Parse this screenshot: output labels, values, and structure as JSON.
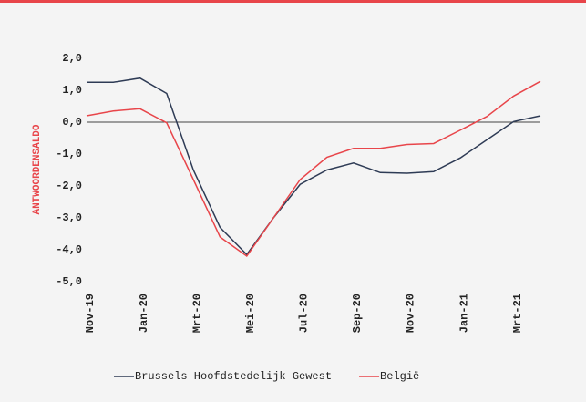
{
  "chart_data": {
    "type": "line",
    "ylabel": "ANTWOORDENSALDO",
    "categories": [
      "Nov-19",
      null,
      "Jan-20",
      null,
      "Mrt-20",
      null,
      "Mei-20",
      null,
      "Jul-20",
      null,
      "Sep-20",
      null,
      "Nov-20",
      null,
      "Jan-21",
      null,
      "Mrt-21",
      null
    ],
    "series": [
      {
        "name": "Brussels Hoofdstedelijk Gewest",
        "color": "#2e3b55",
        "values": [
          1.25,
          1.25,
          1.38,
          0.9,
          -1.5,
          -3.3,
          -4.15,
          -3.0,
          -1.95,
          -1.5,
          -1.28,
          -1.58,
          -1.6,
          -1.55,
          -1.12,
          -0.55,
          0.02,
          0.2
        ]
      },
      {
        "name": "België",
        "color": "#e8454a",
        "values": [
          0.2,
          0.35,
          0.42,
          -0.02,
          -1.8,
          -3.6,
          -4.2,
          -3.0,
          -1.8,
          -1.1,
          -0.82,
          -0.82,
          -0.7,
          -0.67,
          -0.25,
          0.18,
          0.82,
          1.28
        ]
      }
    ],
    "ylim": [
      -5,
      2
    ],
    "yticks": [
      {
        "value": 2,
        "label": "2,0"
      },
      {
        "value": 1,
        "label": "1,0"
      },
      {
        "value": 0,
        "label": "0,0"
      },
      {
        "value": -1,
        "label": "-1,0"
      },
      {
        "value": -2,
        "label": "-2,0"
      },
      {
        "value": -3,
        "label": "-3,0"
      },
      {
        "value": -4,
        "label": "-4,0"
      },
      {
        "value": -5,
        "label": "-5,0"
      }
    ],
    "legend": "bottom"
  }
}
